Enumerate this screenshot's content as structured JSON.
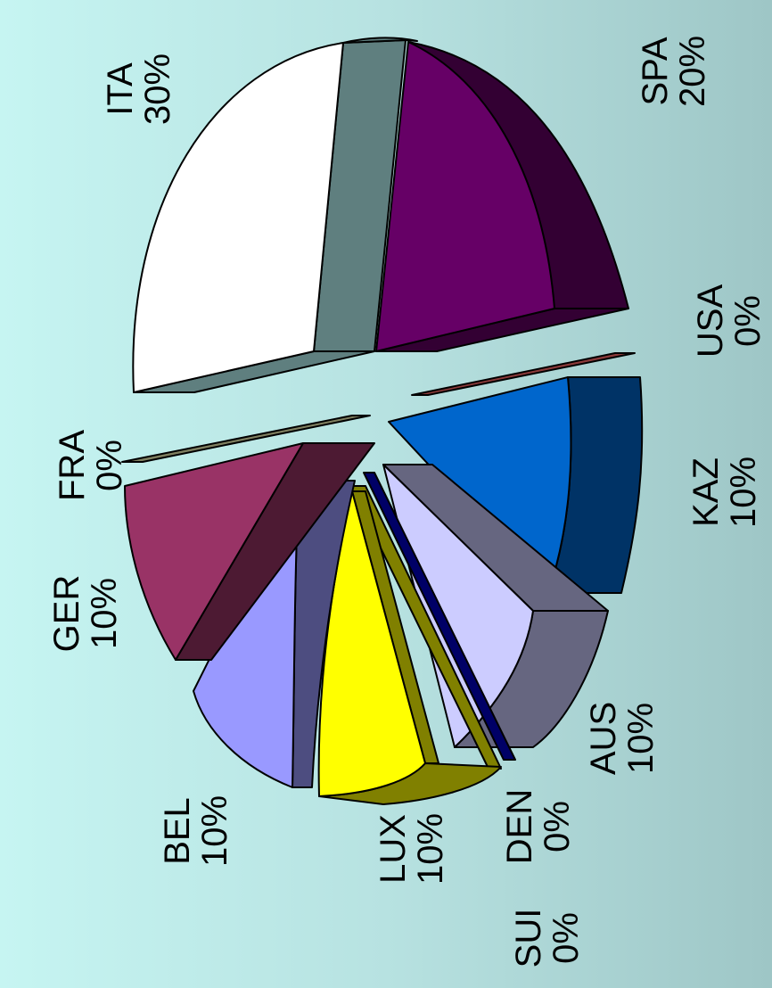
{
  "chart_data": {
    "type": "pie",
    "title": "",
    "style": "3d-exploded",
    "rotation": "90-degrees",
    "slices": [
      {
        "label": "ITA",
        "value": 30,
        "value_label": "30%",
        "color": "#ffffff"
      },
      {
        "label": "SPA",
        "value": 20,
        "value_label": "20%",
        "color": "#660066"
      },
      {
        "label": "USA",
        "value": 0,
        "value_label": "0%",
        "color": "#8b3a3a"
      },
      {
        "label": "KAZ",
        "value": 10,
        "value_label": "10%",
        "color": "#0066cc"
      },
      {
        "label": "AUS",
        "value": 10,
        "value_label": "10%",
        "color": "#ccccff"
      },
      {
        "label": "DEN",
        "value": 0,
        "value_label": "0%",
        "color": "#000066"
      },
      {
        "label": "SUI",
        "value": 0,
        "value_label": "0%",
        "color": "#808000"
      },
      {
        "label": "LUX",
        "value": 10,
        "value_label": "10%",
        "color": "#ffff00"
      },
      {
        "label": "BEL",
        "value": 10,
        "value_label": "10%",
        "color": "#9999ff"
      },
      {
        "label": "GER",
        "value": 10,
        "value_label": "10%",
        "color": "#993366"
      },
      {
        "label": "FRA",
        "value": 0,
        "value_label": "0%",
        "color": "#7f7f60"
      }
    ]
  }
}
